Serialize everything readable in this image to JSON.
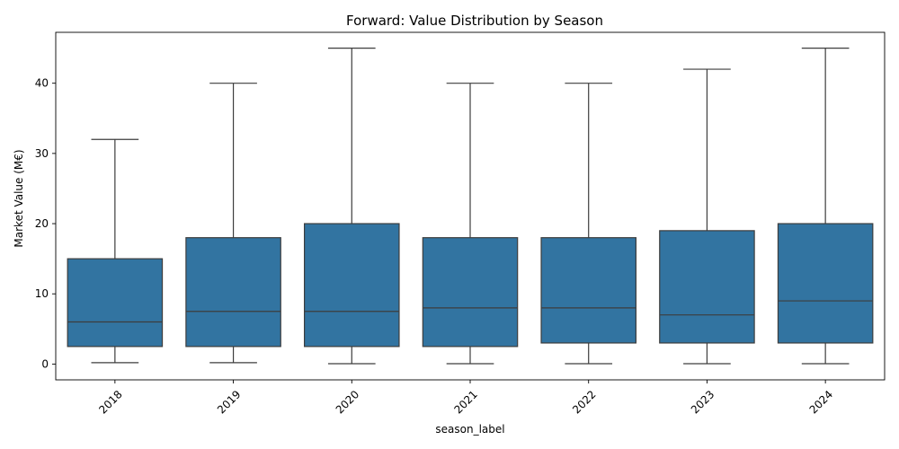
{
  "chart_data": {
    "type": "box",
    "title": "Forward: Value Distribution by Season",
    "xlabel": "season_label",
    "ylabel": "Market Value (M€)",
    "categories": [
      "2018",
      "2019",
      "2020",
      "2021",
      "2022",
      "2023",
      "2024"
    ],
    "boxes": [
      {
        "min": 0.2,
        "q1": 2.5,
        "median": 6.0,
        "q3": 15.0,
        "max": 32.0
      },
      {
        "min": 0.2,
        "q1": 2.5,
        "median": 7.5,
        "q3": 18.0,
        "max": 40.0
      },
      {
        "min": 0.05,
        "q1": 2.5,
        "median": 7.5,
        "q3": 20.0,
        "max": 45.0
      },
      {
        "min": 0.05,
        "q1": 2.5,
        "median": 8.0,
        "q3": 18.0,
        "max": 40.0
      },
      {
        "min": 0.05,
        "q1": 3.0,
        "median": 8.0,
        "q3": 18.0,
        "max": 40.0
      },
      {
        "min": 0.05,
        "q1": 3.0,
        "median": 7.0,
        "q3": 19.0,
        "max": 42.0
      },
      {
        "min": 0.05,
        "q1": 3.0,
        "median": 9.0,
        "q3": 20.0,
        "max": 45.0
      }
    ],
    "yticks": [
      0,
      10,
      20,
      30,
      40
    ],
    "ylim": [
      -2.25,
      47.25
    ],
    "grid": false,
    "colors": {
      "box": "#3274a1",
      "line": "#3d3d3d"
    }
  }
}
